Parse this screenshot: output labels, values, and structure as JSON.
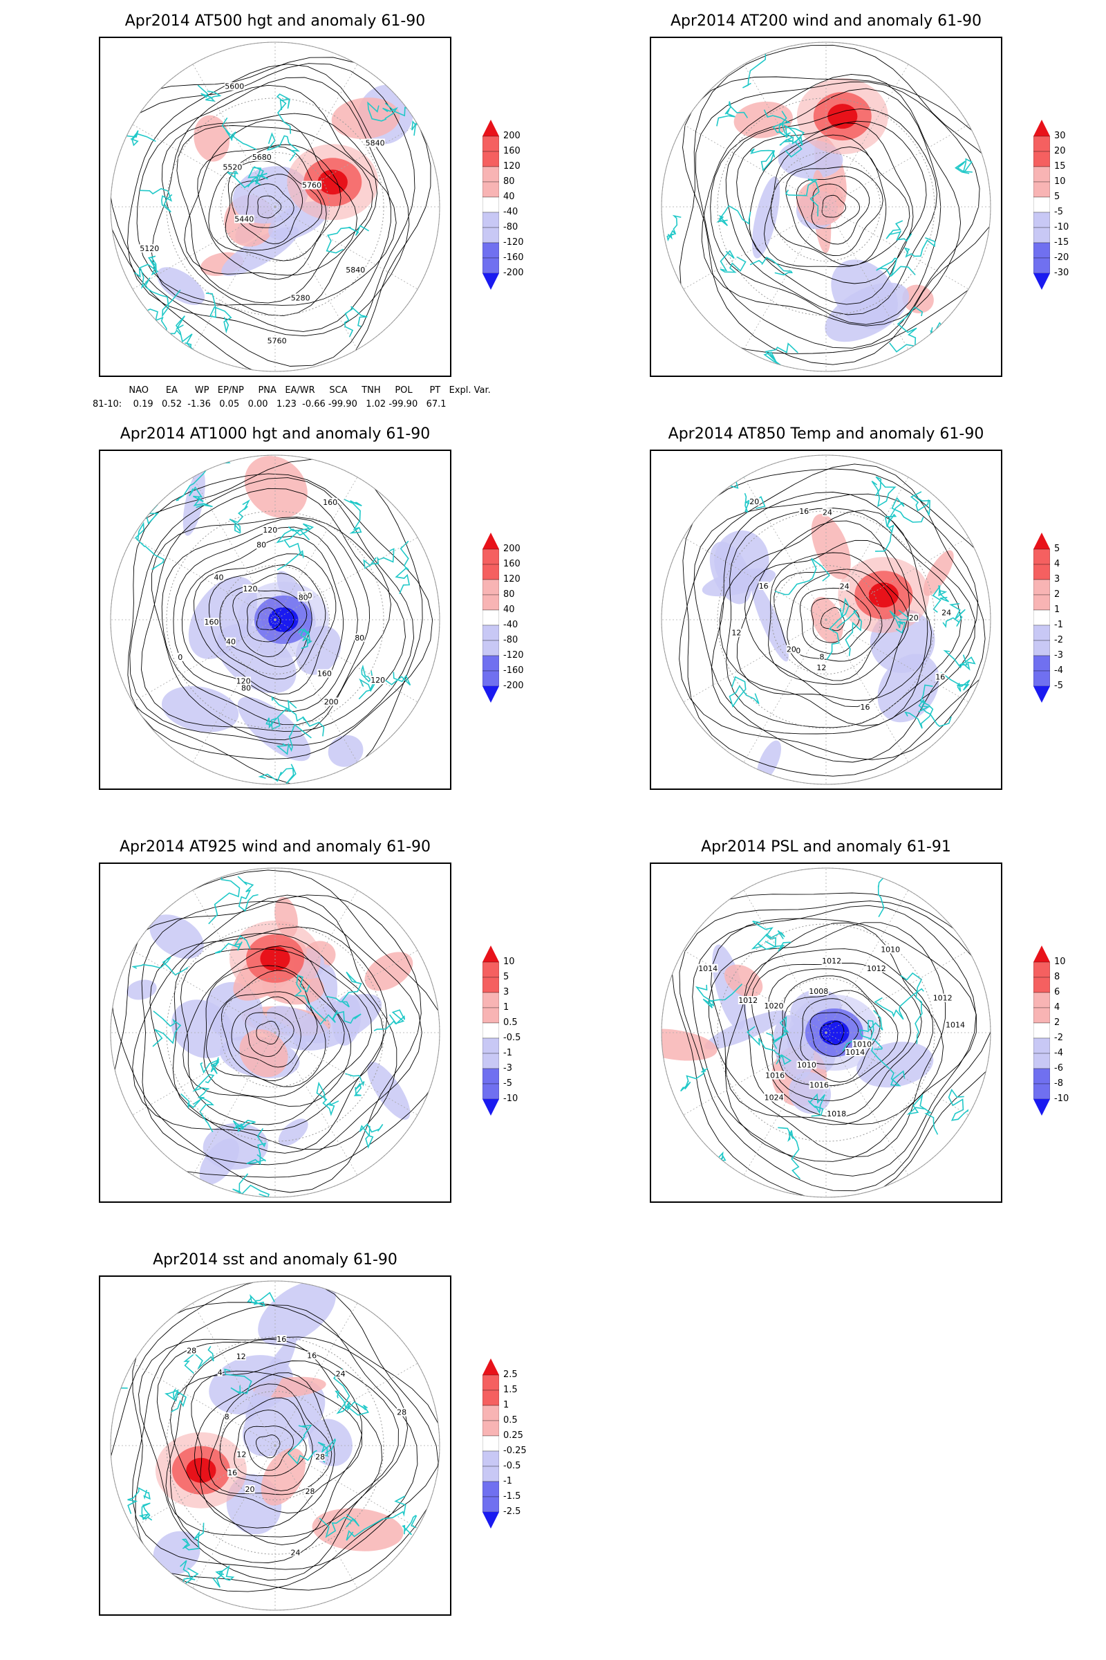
{
  "panels": [
    {
      "id": "at500",
      "title": "Apr2014 AT500 hgt and anomaly 61-90",
      "contour_labels": [
        "5840",
        "5760",
        "5280",
        "5120",
        "5440",
        "5520",
        "5600",
        "5680",
        "5760",
        "5840"
      ],
      "colorbar": [
        "200",
        "160",
        "120",
        "80",
        "40",
        "-40",
        "-80",
        "-120",
        "-160",
        "-200"
      ],
      "anomaly_dominant": "red-east"
    },
    {
      "id": "at200",
      "title": "Apr2014 AT200 wind and anomaly 61-90",
      "contour_labels": [],
      "colorbar": [
        "30",
        "20",
        "15",
        "10",
        "5",
        "-5",
        "-10",
        "-15",
        "-20",
        "-30"
      ],
      "anomaly_dominant": "red-north"
    },
    {
      "id": "at1000",
      "title": "Apr2014 AT1000 hgt and anomaly 61-90",
      "contour_labels": [
        "120",
        "160",
        "200",
        "120",
        "80",
        "40",
        "0",
        "160",
        "40",
        "120",
        "80",
        "120",
        "160",
        "120",
        "80",
        "80"
      ],
      "colorbar": [
        "200",
        "160",
        "120",
        "80",
        "40",
        "-40",
        "-80",
        "-120",
        "-160",
        "-200"
      ],
      "anomaly_dominant": "blue-center"
    },
    {
      "id": "at850",
      "title": "Apr2014 AT850 Temp and anomaly 61-90",
      "contour_labels": [
        "16",
        "16",
        "12",
        "8",
        "0",
        "20",
        "12",
        "16",
        "20",
        "24",
        "16",
        "24",
        "24",
        "20"
      ],
      "colorbar": [
        "5",
        "4",
        "3",
        "2",
        "1",
        "-1",
        "-2",
        "-3",
        "-4",
        "-5"
      ],
      "anomaly_dominant": "red-east"
    },
    {
      "id": "at925",
      "title": "Apr2014 AT925 wind and anomaly 61-90",
      "contour_labels": [],
      "colorbar": [
        "10",
        "5",
        "3",
        "1",
        "0.5",
        "-0.5",
        "-1",
        "-3",
        "-5",
        "-10"
      ],
      "anomaly_dominant": "mixed"
    },
    {
      "id": "psl",
      "title": "Apr2014 PSL and anomaly 61-91",
      "contour_labels": [
        "1010",
        "1014",
        "1016",
        "1018",
        "1024",
        "1010",
        "1016",
        "1012",
        "1020",
        "1014",
        "1012",
        "1008",
        "1010",
        "1012",
        "1014",
        "1012"
      ],
      "colorbar": [
        "10",
        "8",
        "6",
        "4",
        "2",
        "-2",
        "-4",
        "-6",
        "-8",
        "-10"
      ],
      "anomaly_dominant": "blue-center"
    },
    {
      "id": "sst",
      "title": "Apr2014 sst and anomaly 61-90",
      "contour_labels": [
        "28",
        "28",
        "24",
        "20",
        "16",
        "12",
        "8",
        "4",
        "28",
        "12",
        "16",
        "16",
        "24",
        "28"
      ],
      "colorbar": [
        "2.5",
        "1.5",
        "1",
        "0.5",
        "0.25",
        "-0.25",
        "-0.5",
        "-1",
        "-1.5",
        "-2.5"
      ],
      "anomaly_dominant": "red-west"
    }
  ],
  "indices": {
    "headers": [
      "NAO",
      "EA",
      "WP",
      "EP/NP",
      "PNA",
      "EA/WR",
      "SCA",
      "TNH",
      "POL",
      "PT",
      "Expl. Var."
    ],
    "row_label": "81-10:",
    "values": [
      "0.19",
      "0.52",
      "-1.36",
      "0.05",
      "0.00",
      "1.23",
      "-0.66",
      "-99.90",
      "1.02",
      "-99.90",
      "67.1"
    ]
  },
  "colors": {
    "coast": "#20c8c8",
    "red_strong": "#e8121a",
    "red_mid": "#f56060",
    "red_light": "#f8b4b4",
    "blue_light": "#c8c8f5",
    "blue_mid": "#7070f0",
    "blue_strong": "#1a1af0"
  }
}
